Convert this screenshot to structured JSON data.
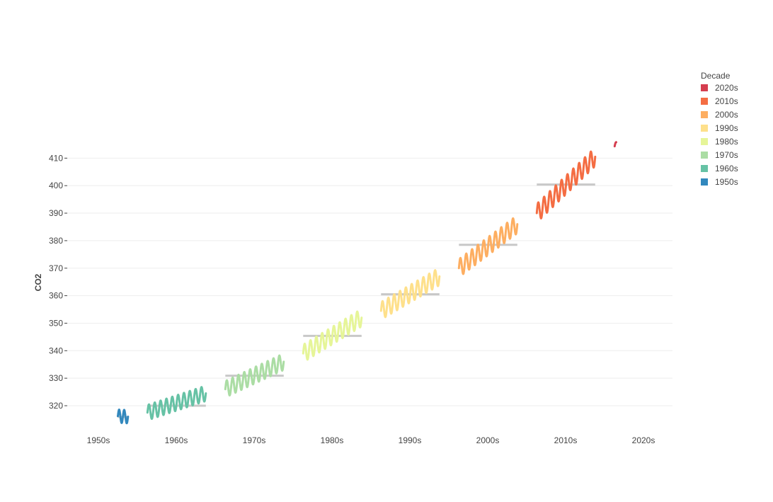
{
  "chart_data": {
    "type": "line",
    "title": "",
    "xlabel": "",
    "ylabel": "CO2",
    "x_categories": [
      "1950s",
      "1960s",
      "1970s",
      "1980s",
      "1990s",
      "2000s",
      "2010s",
      "2020s"
    ],
    "ylim": [
      312,
      417
    ],
    "yticks": [
      320,
      330,
      340,
      350,
      360,
      370,
      380,
      390,
      400,
      410
    ],
    "grid": true,
    "legend": {
      "title": "Decade",
      "placement": "top-right",
      "order": [
        "2020s",
        "2010s",
        "2000s",
        "1990s",
        "1980s",
        "1970s",
        "1960s",
        "1950s"
      ]
    },
    "series": [
      {
        "name": "1950s",
        "color": "#3288bd",
        "start": 316.2,
        "end": 316.0,
        "seasonal_amplitude": 2.4,
        "cycles": 2,
        "span": [
          0.25,
          0.38
        ],
        "mean": 315.9
      },
      {
        "name": "1960s",
        "color": "#66c2a5",
        "start": 317.5,
        "end": 324.5,
        "seasonal_amplitude": 2.8,
        "cycles": 10,
        "span": [
          0.63,
          1.38
        ],
        "mean": 320.0
      },
      {
        "name": "1970s",
        "color": "#abdda4",
        "start": 326.0,
        "end": 336.0,
        "seasonal_amplitude": 3.0,
        "cycles": 10,
        "span": [
          1.63,
          2.38
        ],
        "mean": 330.9
      },
      {
        "name": "1980s",
        "color": "#e6f598",
        "start": 339.0,
        "end": 352.0,
        "seasonal_amplitude": 3.2,
        "cycles": 10,
        "span": [
          2.63,
          3.38
        ],
        "mean": 345.4
      },
      {
        "name": "1990s",
        "color": "#fee08b",
        "start": 354.5,
        "end": 367.0,
        "seasonal_amplitude": 3.2,
        "cycles": 10,
        "span": [
          3.63,
          4.38
        ],
        "mean": 360.5
      },
      {
        "name": "2000s",
        "color": "#fdae61",
        "start": 370.0,
        "end": 386.0,
        "seasonal_amplitude": 3.3,
        "cycles": 10,
        "span": [
          4.63,
          5.38
        ],
        "mean": 378.5
      },
      {
        "name": "2010s",
        "color": "#f46d43",
        "start": 390.0,
        "end": 410.5,
        "seasonal_amplitude": 3.4,
        "cycles": 10,
        "span": [
          5.63,
          6.38
        ],
        "mean": 400.4
      },
      {
        "name": "2020s",
        "color": "#d53e4f",
        "start": 414.3,
        "end": 415.8,
        "seasonal_amplitude": 0.4,
        "cycles": 0.5,
        "span": [
          6.63,
          6.65
        ],
        "mean": null
      }
    ]
  }
}
